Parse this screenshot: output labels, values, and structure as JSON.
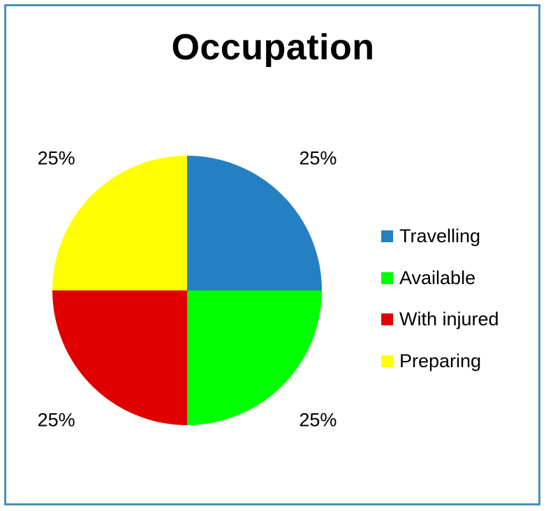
{
  "chart_data": {
    "type": "pie",
    "title": "Occupation",
    "categories": [
      "Travelling",
      "Available",
      "With injured",
      "Preparing"
    ],
    "values": [
      25,
      25,
      25,
      25
    ],
    "data_labels": [
      "25%",
      "25%",
      "25%",
      "25%"
    ],
    "colors": [
      "#2580c3",
      "#00ff00",
      "#e00000",
      "#ffff00"
    ],
    "legend_position": "right"
  }
}
